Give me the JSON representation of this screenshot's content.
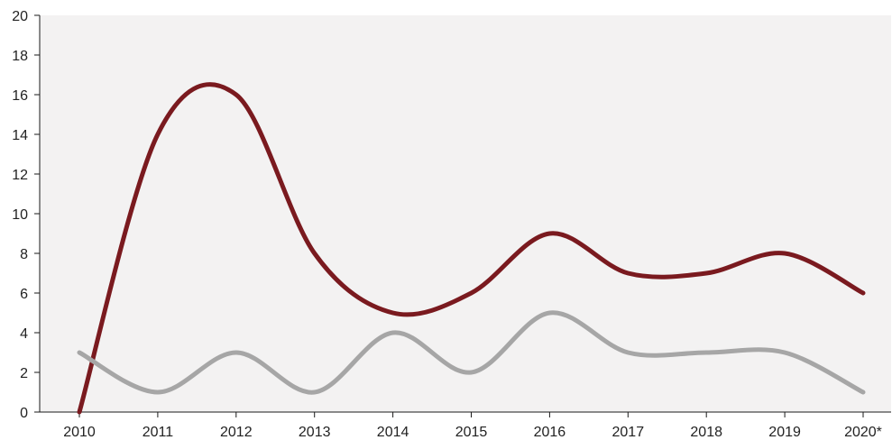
{
  "chart_data": {
    "type": "line",
    "categories": [
      "2010",
      "2011",
      "2012",
      "2013",
      "2014",
      "2015",
      "2016",
      "2017",
      "2018",
      "2019",
      "2020*"
    ],
    "series": [
      {
        "color": "#7a1a1f",
        "values": [
          0,
          14,
          16,
          8,
          5,
          6,
          9,
          7,
          7,
          8,
          6
        ]
      },
      {
        "color": "#a6a6a6",
        "values": [
          3,
          1,
          3,
          1,
          4,
          2,
          5,
          3,
          3,
          3,
          1
        ]
      }
    ],
    "y_ticks": [
      "0",
      "2",
      "4",
      "6",
      "8",
      "10",
      "12",
      "14",
      "16",
      "18",
      "20"
    ],
    "ylim": [
      0,
      20
    ],
    "grid": false,
    "plot_background": "#f3f2f2"
  }
}
